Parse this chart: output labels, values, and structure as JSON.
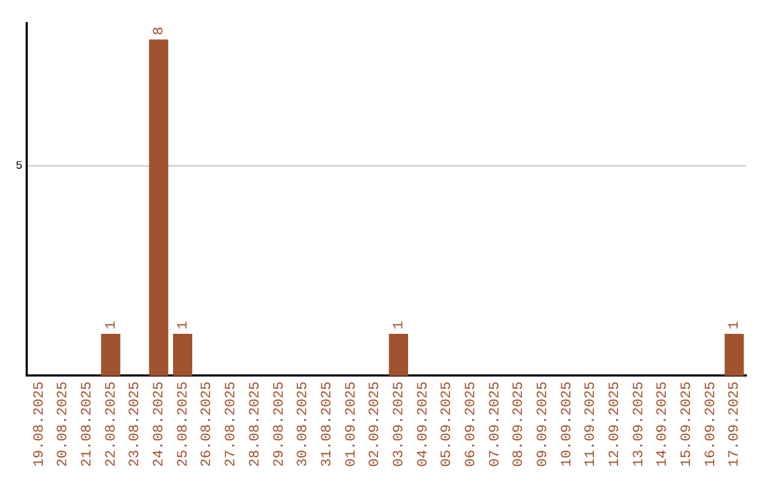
{
  "chart_data": {
    "type": "bar",
    "categories": [
      "19.08.2025",
      "20.08.2025",
      "21.08.2025",
      "22.08.2025",
      "23.08.2025",
      "24.08.2025",
      "25.08.2025",
      "26.08.2025",
      "27.08.2025",
      "28.08.2025",
      "29.08.2025",
      "30.08.2025",
      "31.08.2025",
      "01.09.2025",
      "02.09.2025",
      "03.09.2025",
      "04.09.2025",
      "05.09.2025",
      "06.09.2025",
      "07.09.2025",
      "08.09.2025",
      "09.09.2025",
      "10.09.2025",
      "11.09.2025",
      "12.09.2025",
      "13.09.2025",
      "14.09.2025",
      "15.09.2025",
      "16.09.2025",
      "17.09.2025"
    ],
    "values": [
      0,
      0,
      0,
      1,
      0,
      8,
      1,
      0,
      0,
      0,
      0,
      0,
      0,
      0,
      0,
      1,
      0,
      0,
      0,
      0,
      0,
      0,
      0,
      0,
      0,
      0,
      0,
      0,
      0,
      1
    ],
    "color": "#a0522d",
    "ylim": [
      0,
      8.4
    ],
    "yticks": [
      5
    ],
    "grid": "y",
    "value_labels": [
      null,
      null,
      null,
      "1",
      null,
      "8",
      "1",
      null,
      null,
      null,
      null,
      null,
      null,
      null,
      null,
      "1",
      null,
      null,
      null,
      null,
      null,
      null,
      null,
      null,
      null,
      null,
      null,
      null,
      null,
      "1"
    ],
    "legend": false
  }
}
